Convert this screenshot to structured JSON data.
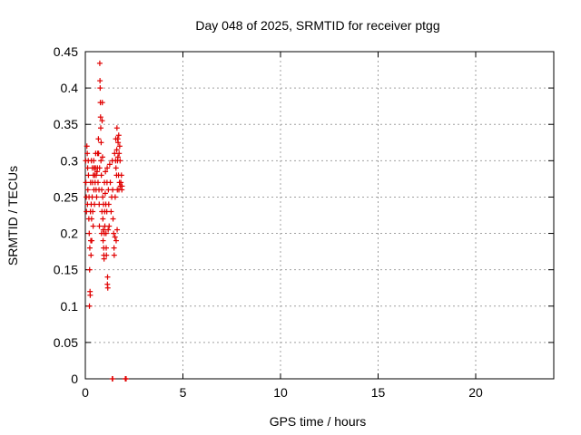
{
  "chart_data": {
    "type": "scatter",
    "title": "Day 048 of 2025, SRMTID for receiver ptgg",
    "xlabel": "GPS time / hours",
    "ylabel": "SRMTID / TECUs",
    "xlim": [
      0,
      24
    ],
    "ylim": [
      0,
      0.45
    ],
    "xticks": [
      0,
      5,
      10,
      15,
      20
    ],
    "yticks": [
      0,
      0.05,
      0.1,
      0.15,
      0.2,
      0.25,
      0.3,
      0.35,
      0.4,
      0.45
    ],
    "grid": true,
    "marker": "+",
    "color": "#e00000",
    "points": [
      [
        0.02,
        0.3
      ],
      [
        0.03,
        0.27
      ],
      [
        0.05,
        0.25
      ],
      [
        0.06,
        0.23
      ],
      [
        0.08,
        0.32
      ],
      [
        0.1,
        0.31
      ],
      [
        0.11,
        0.24
      ],
      [
        0.12,
        0.29
      ],
      [
        0.13,
        0.26
      ],
      [
        0.15,
        0.3
      ],
      [
        0.16,
        0.28
      ],
      [
        0.18,
        0.22
      ],
      [
        0.19,
        0.25
      ],
      [
        0.2,
        0.2
      ],
      [
        0.21,
        0.1
      ],
      [
        0.22,
        0.15
      ],
      [
        0.23,
        0.18
      ],
      [
        0.24,
        0.12
      ],
      [
        0.25,
        0.115
      ],
      [
        0.26,
        0.23
      ],
      [
        0.27,
        0.27
      ],
      [
        0.28,
        0.19
      ],
      [
        0.29,
        0.17
      ],
      [
        0.3,
        0.24
      ],
      [
        0.31,
        0.3
      ],
      [
        0.32,
        0.22
      ],
      [
        0.33,
        0.19
      ],
      [
        0.35,
        0.25
      ],
      [
        0.36,
        0.29
      ],
      [
        0.37,
        0.27
      ],
      [
        0.38,
        0.23
      ],
      [
        0.4,
        0.21
      ],
      [
        0.41,
        0.28
      ],
      [
        0.43,
        0.3
      ],
      [
        0.44,
        0.26
      ],
      [
        0.45,
        0.29
      ],
      [
        0.47,
        0.24
      ],
      [
        0.48,
        0.28
      ],
      [
        0.5,
        0.27
      ],
      [
        0.52,
        0.29
      ],
      [
        0.53,
        0.31
      ],
      [
        0.55,
        0.26
      ],
      [
        0.56,
        0.28
      ],
      [
        0.58,
        0.25
      ],
      [
        0.6,
        0.285
      ],
      [
        0.62,
        0.29
      ],
      [
        0.63,
        0.31
      ],
      [
        0.65,
        0.27
      ],
      [
        0.67,
        0.33
      ],
      [
        0.68,
        0.31
      ],
      [
        0.7,
        0.26
      ],
      [
        0.71,
        0.24
      ],
      [
        0.72,
        0.21
      ],
      [
        0.73,
        0.29
      ],
      [
        0.74,
        0.434
      ],
      [
        0.75,
        0.41
      ],
      [
        0.76,
        0.4
      ],
      [
        0.77,
        0.38
      ],
      [
        0.78,
        0.36
      ],
      [
        0.79,
        0.345
      ],
      [
        0.8,
        0.3
      ],
      [
        0.81,
        0.325
      ],
      [
        0.82,
        0.28
      ],
      [
        0.83,
        0.2
      ],
      [
        0.84,
        0.26
      ],
      [
        0.85,
        0.23
      ],
      [
        0.86,
        0.355
      ],
      [
        0.87,
        0.38
      ],
      [
        0.88,
        0.305
      ],
      [
        0.89,
        0.25
      ],
      [
        0.9,
        0.22
      ],
      [
        0.91,
        0.19
      ],
      [
        0.92,
        0.205
      ],
      [
        0.93,
        0.24
      ],
      [
        0.94,
        0.18
      ],
      [
        0.95,
        0.17
      ],
      [
        0.96,
        0.165
      ],
      [
        0.97,
        0.2
      ],
      [
        0.98,
        0.27
      ],
      [
        0.99,
        0.23
      ],
      [
        1.0,
        0.21
      ],
      [
        1.02,
        0.255
      ],
      [
        1.03,
        0.285
      ],
      [
        1.05,
        0.24
      ],
      [
        1.06,
        0.2
      ],
      [
        1.07,
        0.18
      ],
      [
        1.08,
        0.17
      ],
      [
        1.1,
        0.23
      ],
      [
        1.11,
        0.27
      ],
      [
        1.12,
        0.29
      ],
      [
        1.13,
        0.13
      ],
      [
        1.14,
        0.14
      ],
      [
        1.15,
        0.125
      ],
      [
        1.17,
        0.205
      ],
      [
        1.18,
        0.26
      ],
      [
        1.2,
        0.24
      ],
      [
        1.22,
        0.21
      ],
      [
        1.25,
        0.295
      ],
      [
        1.28,
        0.27
      ],
      [
        1.32,
        0.23
      ],
      [
        1.35,
        0.25
      ],
      [
        1.38,
        0.3
      ],
      [
        1.4,
        0.26
      ],
      [
        1.42,
        0.22
      ],
      [
        1.45,
        0.2
      ],
      [
        1.47,
        0.18
      ],
      [
        1.48,
        0.17
      ],
      [
        1.5,
        0.31
      ],
      [
        1.52,
        0.195
      ],
      [
        1.53,
        0.25
      ],
      [
        1.55,
        0.3
      ],
      [
        1.56,
        0.33
      ],
      [
        1.57,
        0.29
      ],
      [
        1.58,
        0.19
      ],
      [
        1.6,
        0.28
      ],
      [
        1.61,
        0.315
      ],
      [
        1.62,
        0.345
      ],
      [
        1.63,
        0.205
      ],
      [
        1.64,
        0.26
      ],
      [
        1.65,
        0.3
      ],
      [
        1.66,
        0.33
      ],
      [
        1.67,
        0.305
      ],
      [
        1.68,
        0.325
      ],
      [
        1.7,
        0.28
      ],
      [
        1.71,
        0.335
      ],
      [
        1.72,
        0.26
      ],
      [
        1.73,
        0.31
      ],
      [
        1.75,
        0.27
      ],
      [
        1.76,
        0.32
      ],
      [
        1.78,
        0.3
      ],
      [
        1.8,
        0.265
      ],
      [
        1.82,
        0.27
      ],
      [
        1.85,
        0.28
      ],
      [
        1.87,
        0.26
      ],
      [
        1.88,
        0.265
      ],
      [
        1.38,
        0.0
      ],
      [
        1.4,
        0.0
      ],
      [
        2.05,
        0.0
      ],
      [
        2.07,
        0.0
      ],
      [
        2.09,
        0.0
      ]
    ]
  }
}
